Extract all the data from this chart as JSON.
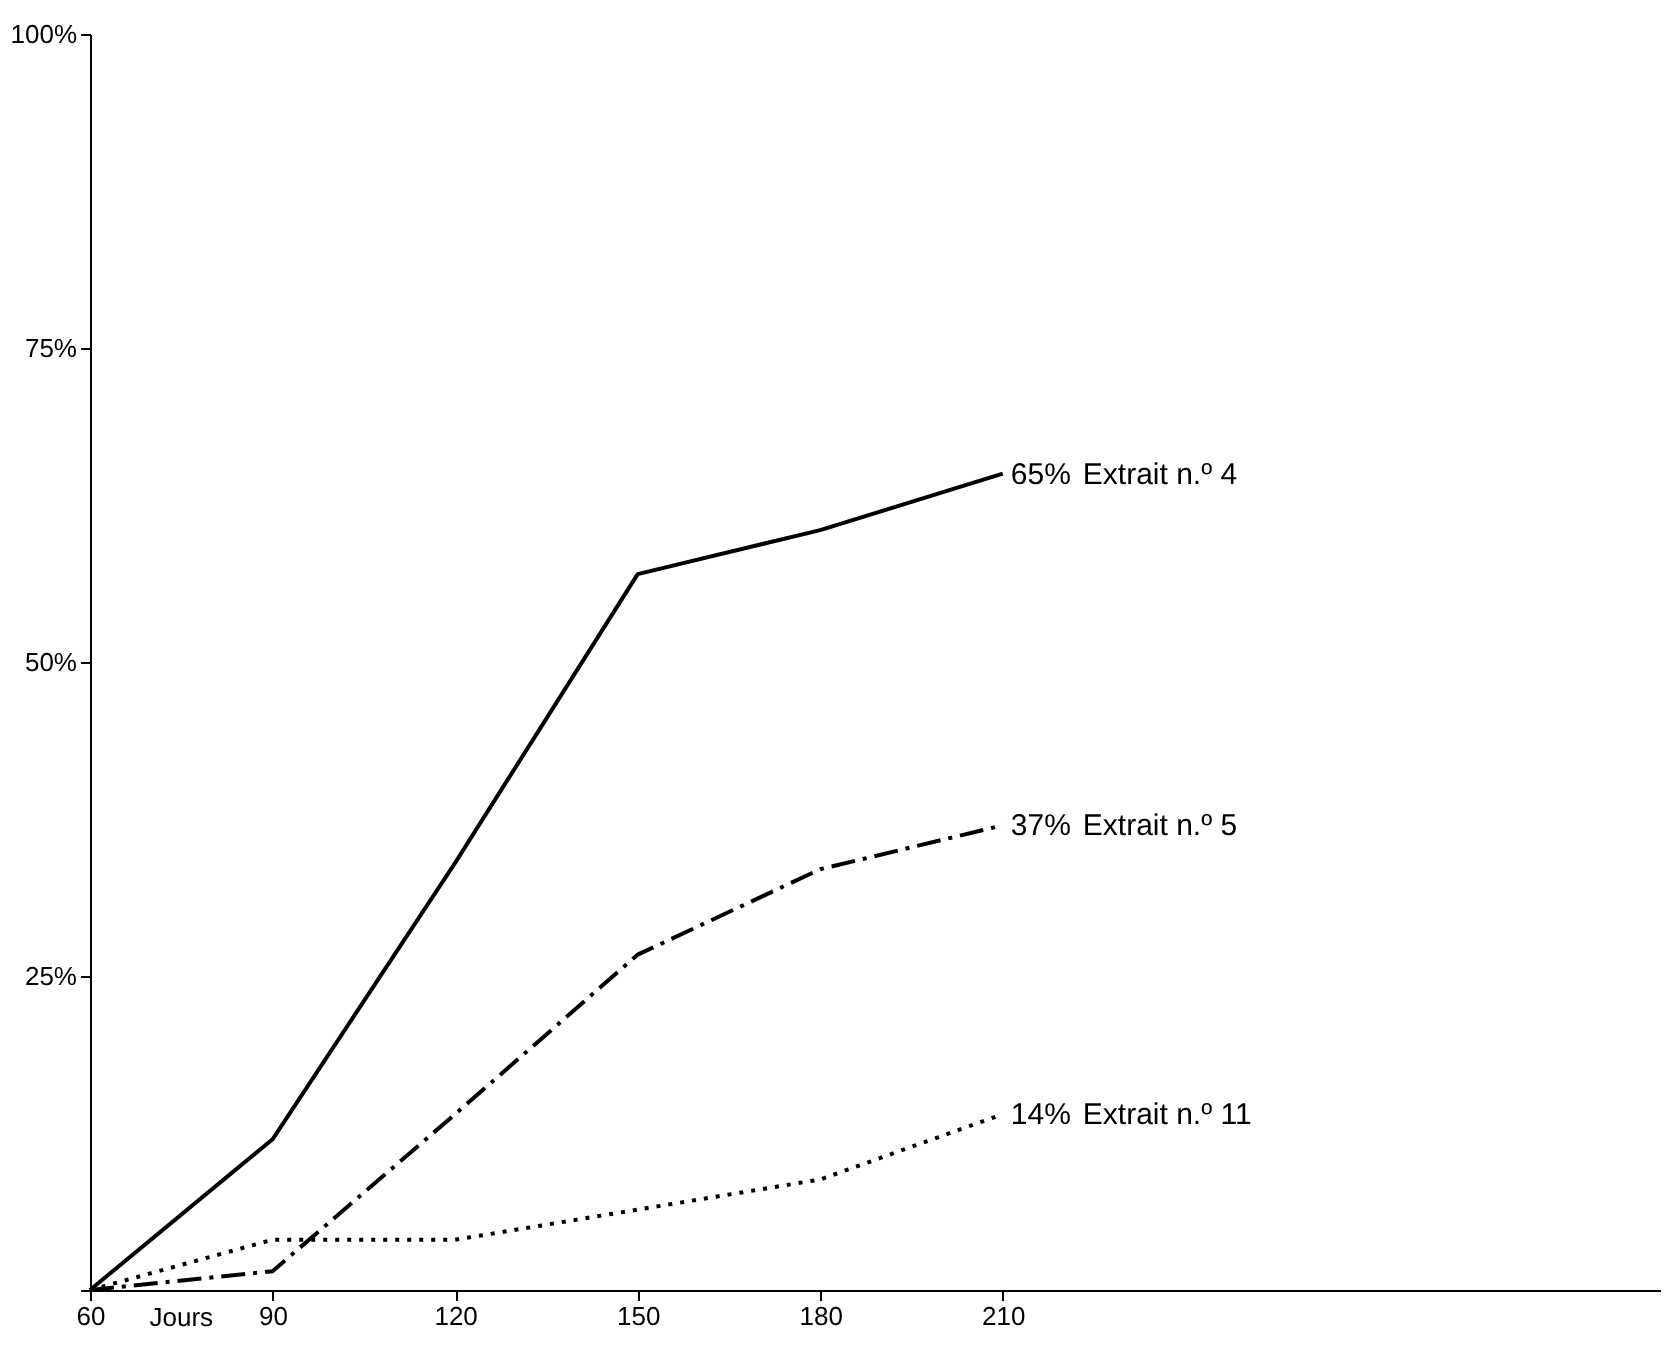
{
  "chart_data": {
    "type": "line",
    "xlabel": "Jours",
    "x": [
      60,
      90,
      120,
      150,
      180,
      210
    ],
    "series": [
      {
        "name": "Extrait n.º 4",
        "color": "#000000",
        "line_style": "solid",
        "values": [
          0,
          12,
          34,
          57,
          60.5,
          65
        ],
        "value_labels": [
          null,
          null,
          null,
          null,
          null,
          "65%"
        ]
      },
      {
        "name": "Extrait n.º 5",
        "color": "#000000",
        "line_style": "dashed",
        "values": [
          0,
          1.5,
          14,
          26.7,
          33.5,
          37
        ],
        "value_labels": [
          null,
          null,
          null,
          null,
          null,
          "37%"
        ]
      },
      {
        "name": "Extrait n.º 11",
        "color": "#000000",
        "line_style": "dotted",
        "values": [
          0,
          4,
          4,
          6.4,
          8.8,
          14
        ],
        "value_labels": [
          null,
          null,
          null,
          null,
          null,
          "14%"
        ]
      }
    ],
    "xlim": [
      60,
      318
    ],
    "ylim": [
      0,
      100
    ],
    "xticks": [
      60,
      90,
      120,
      150,
      180,
      210
    ],
    "yticks": [
      {
        "value": 0,
        "label": null
      },
      {
        "value": 25,
        "label": "25%"
      },
      {
        "value": 50,
        "label": "50%"
      },
      {
        "value": 75,
        "label": "75%"
      },
      {
        "value": 100,
        "label": "100%"
      }
    ],
    "grid": false,
    "legend": false,
    "marker": "none"
  }
}
